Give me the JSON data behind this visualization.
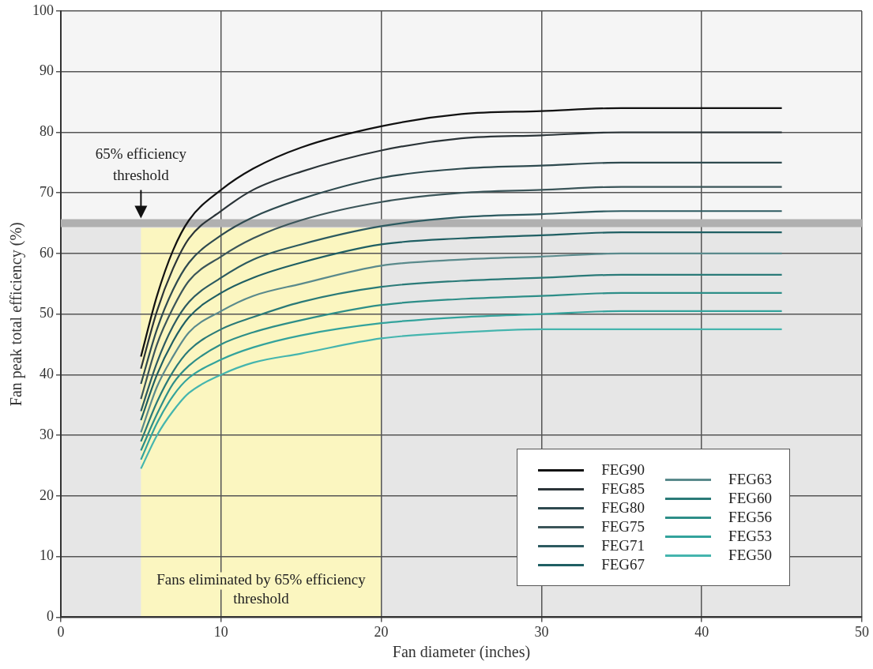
{
  "chart_data": {
    "type": "line",
    "xlabel": "Fan diameter (inches)",
    "ylabel": "Fan peak total efficiency (%)",
    "x": [
      5,
      6,
      7,
      8,
      10,
      12,
      15,
      20,
      25,
      30,
      35,
      40,
      45
    ],
    "series": [
      {
        "name": "FEG90",
        "color": "#111111",
        "values": [
          43,
          53,
          60.5,
          65.5,
          70.5,
          74,
          77.5,
          81,
          83,
          83.5,
          84,
          84,
          84
        ]
      },
      {
        "name": "FEG85",
        "color": "#2b3438",
        "values": [
          41,
          50.5,
          57.5,
          62.5,
          67,
          70.5,
          73.5,
          77,
          79,
          79.5,
          80,
          80,
          80
        ]
      },
      {
        "name": "FEG80",
        "color": "#2e4a4f",
        "values": [
          38.5,
          47.5,
          54,
          58.5,
          63,
          66,
          69,
          72.5,
          74,
          74.5,
          75,
          75,
          75
        ]
      },
      {
        "name": "FEG75",
        "color": "#3b5559",
        "values": [
          36,
          45,
          51,
          55.5,
          59.5,
          62.5,
          65.5,
          68.5,
          70,
          70.5,
          71,
          71,
          71
        ]
      },
      {
        "name": "FEG71",
        "color": "#2c5a60",
        "values": [
          34,
          42,
          48,
          52,
          56,
          59,
          61.5,
          64.5,
          66,
          66.5,
          67,
          67,
          67
        ]
      },
      {
        "name": "FEG67",
        "color": "#1f5f63",
        "values": [
          32.5,
          40,
          45.5,
          49.5,
          53.5,
          56,
          58.5,
          61.5,
          62.5,
          63,
          63.5,
          63.5,
          63.5
        ]
      },
      {
        "name": "FEG63",
        "color": "#5a8a8c",
        "values": [
          30.5,
          38,
          43,
          47,
          50.5,
          53,
          55,
          58,
          59,
          59.5,
          60,
          60,
          60
        ]
      },
      {
        "name": "FEG60",
        "color": "#2a7a78",
        "values": [
          29,
          35.5,
          40.5,
          44,
          47.5,
          49.5,
          52,
          54.5,
          55.5,
          56,
          56.5,
          56.5,
          56.5
        ]
      },
      {
        "name": "FEG56",
        "color": "#2d8e88",
        "values": [
          27.5,
          33.5,
          38.5,
          41.5,
          45,
          47,
          49,
          51.5,
          52.5,
          53,
          53.5,
          53.5,
          53.5
        ]
      },
      {
        "name": "FEG53",
        "color": "#33a39c",
        "values": [
          26,
          32,
          36.5,
          39.5,
          42.5,
          44.5,
          46.5,
          48.5,
          49.5,
          50,
          50.5,
          50.5,
          50.5
        ]
      },
      {
        "name": "FEG50",
        "color": "#45b5ae",
        "values": [
          24.5,
          30,
          34,
          37,
          40,
          42,
          43.5,
          46,
          47,
          47.5,
          47.5,
          47.5,
          47.5
        ]
      }
    ],
    "xlim": [
      0,
      50
    ],
    "xticks": [
      0,
      10,
      20,
      30,
      40,
      50
    ],
    "ylim": [
      0,
      100
    ],
    "yticks": [
      0,
      10,
      20,
      30,
      40,
      50,
      60,
      70,
      80,
      90,
      100
    ],
    "grid": true,
    "legend": "bottom right",
    "marker": "none",
    "line_style": "solid",
    "ref_lines": [
      {
        "axis": "y",
        "value": 65,
        "color": "#b0b0b0"
      }
    ],
    "annotations": [
      {
        "text": "65% efficiency threshold",
        "x": 5,
        "y": 65
      }
    ],
    "bands": [
      {
        "axis": "y",
        "from": 0,
        "to": 65,
        "color": "#e6e6e6"
      },
      {
        "axis": "x",
        "from": 5,
        "to": 20,
        "label": "Fans eliminated by 65% efficiency threshold",
        "color": "#fbf6c0"
      }
    ]
  }
}
